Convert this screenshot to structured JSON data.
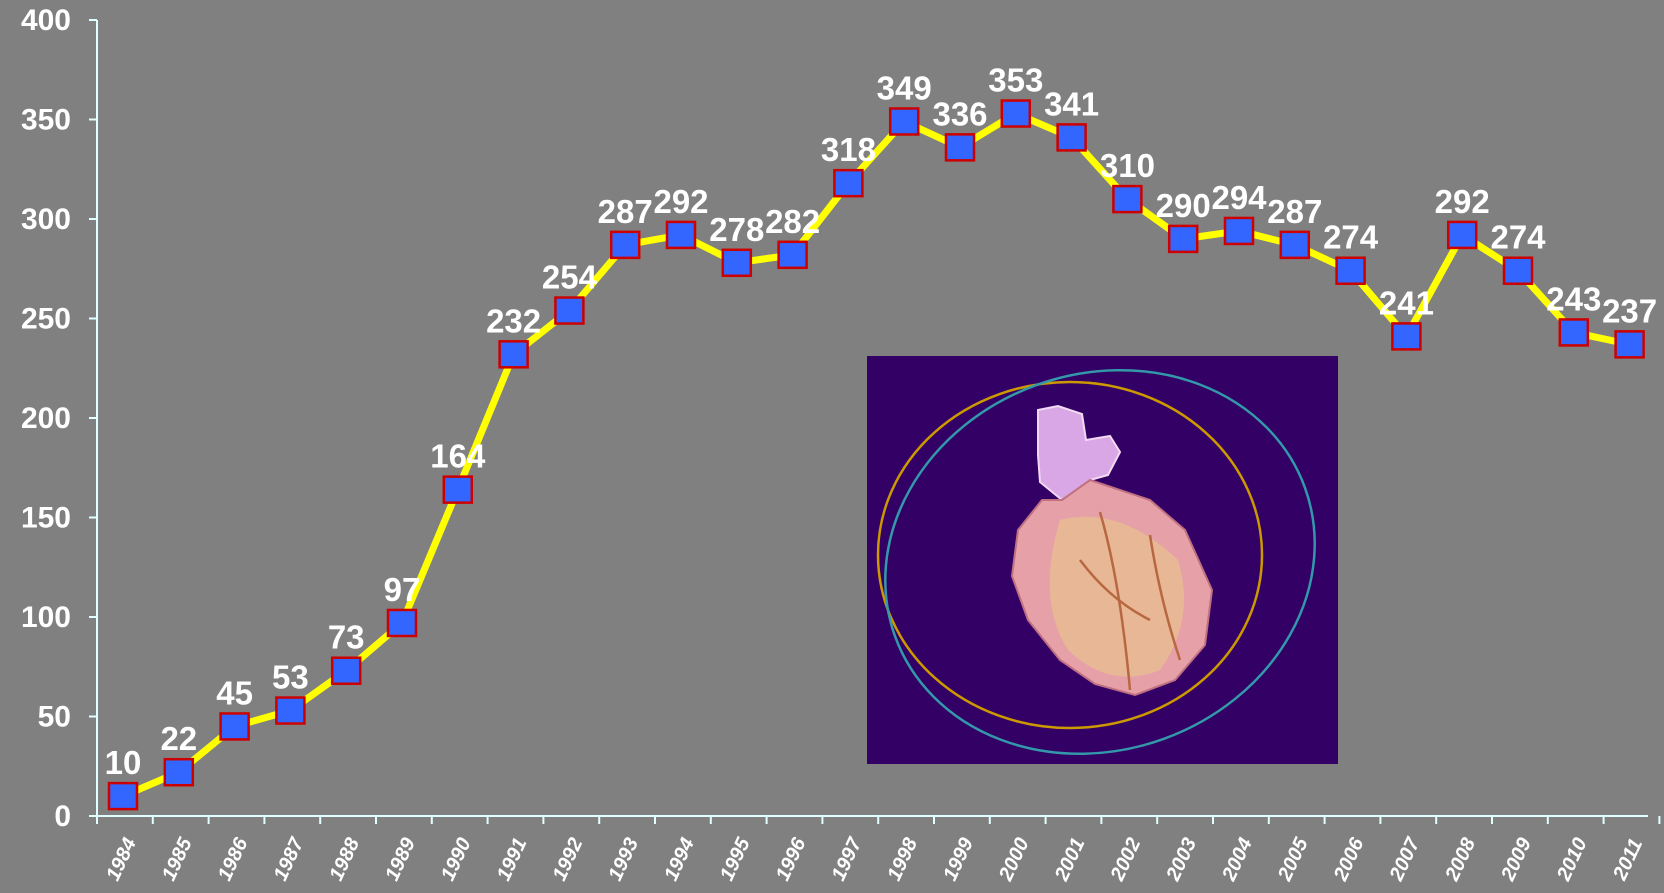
{
  "chart_data": {
    "type": "line",
    "x": [
      "1984",
      "1985",
      "1986",
      "1987",
      "1988",
      "1989",
      "1990",
      "1991",
      "1992",
      "1993",
      "1994",
      "1995",
      "1996",
      "1997",
      "1998",
      "1999",
      "2000",
      "2001",
      "2002",
      "2003",
      "2004",
      "2005",
      "2006",
      "2007",
      "2008",
      "2009",
      "2010",
      "2011"
    ],
    "values": [
      10,
      22,
      45,
      53,
      73,
      97,
      164,
      232,
      254,
      287,
      292,
      278,
      282,
      318,
      349,
      336,
      353,
      341,
      310,
      290,
      294,
      287,
      274,
      241,
      292,
      274,
      243,
      237
    ],
    "data_labels": [
      "10",
      "22",
      "45",
      "53",
      "73",
      "97",
      "164",
      "232",
      "254",
      "287",
      "292",
      "278",
      "282",
      "318",
      "349",
      "336",
      "353",
      "341",
      "310",
      "290",
      "294",
      "287",
      "274",
      "241",
      "292",
      "274",
      "243",
      "237"
    ],
    "yticks": [
      "0",
      "50",
      "100",
      "150",
      "200",
      "250",
      "300",
      "350",
      "400"
    ],
    "ylim": [
      0,
      400
    ],
    "title": "",
    "xlabel": "",
    "ylabel": "",
    "grid": false,
    "legend": "none",
    "colors": {
      "background": "#808080",
      "axis": "#e0ffff",
      "line": "#ffff00",
      "marker_fill": "#3366ff",
      "marker_edge": "#cc0000",
      "text": "#ffffff"
    }
  },
  "inset_image": {
    "subject": "anatomical heart illustration",
    "icon": "heart-icon",
    "colors": {
      "background": "#330066",
      "orbit_a": "#cc9900",
      "orbit_b": "#3399aa"
    }
  }
}
